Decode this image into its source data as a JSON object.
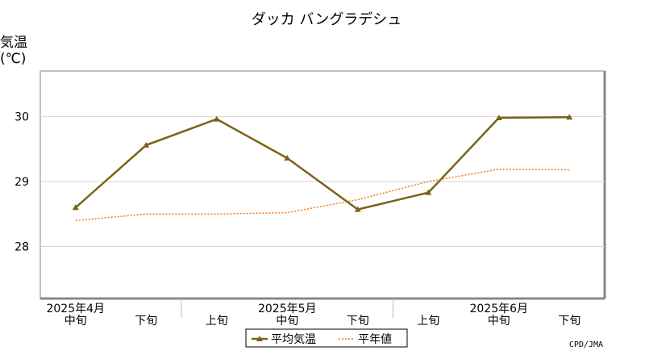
{
  "chart_data": {
    "type": "line",
    "title": "ダッカ バングラデシュ",
    "ylabel": "気温",
    "yunit": "(℃)",
    "ylim": [
      27.2,
      30.7
    ],
    "yticks": [
      28,
      29,
      30
    ],
    "categories": [
      "中旬",
      "下旬",
      "上旬",
      "中旬",
      "下旬",
      "上旬",
      "中旬",
      "下旬"
    ],
    "month_labels": [
      {
        "label": "2025年4月",
        "at_index": 0
      },
      {
        "label": "2025年5月",
        "at_index": 3
      },
      {
        "label": "2025年6月",
        "at_index": 6
      }
    ],
    "month_separators_after_index": [
      1,
      4
    ],
    "series": [
      {
        "name": "平均気温",
        "style": "solid-marker",
        "color": "#7a6414",
        "values": [
          28.6,
          29.56,
          29.96,
          29.36,
          28.57,
          28.83,
          29.98,
          29.99
        ]
      },
      {
        "name": "平年値",
        "style": "dotted",
        "color": "#f07818",
        "values": [
          28.4,
          28.5,
          28.5,
          28.52,
          28.72,
          29.0,
          29.19,
          29.18
        ]
      }
    ],
    "grid": true,
    "legend": "bottom-center",
    "credit": "CPD/JMA"
  }
}
